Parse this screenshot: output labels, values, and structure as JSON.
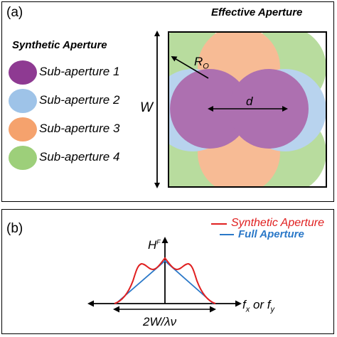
{
  "panel_a": {
    "label": "(a)",
    "effective_title": "Effective Aperture",
    "synthetic_title": "Synthetic Aperture",
    "legend": [
      {
        "label": "Sub-aperture 1",
        "color": "#8e3a92"
      },
      {
        "label": "Sub-aperture 2",
        "color": "#9ec3e8"
      },
      {
        "label": "Sub-aperture 3",
        "color": "#f5a26d"
      },
      {
        "label": "Sub-aperture 4",
        "color": "#9dcf7a"
      }
    ],
    "w_label": "W",
    "r_label": "R",
    "r_sub": "O",
    "d_label": "d"
  },
  "panel_b": {
    "label": "(b)",
    "legend": [
      {
        "label": "Synthetic Aperture",
        "color": "#e02020"
      },
      {
        "label": "Full Aperture",
        "color": "#2a78c8"
      }
    ],
    "y_label": "H",
    "y_sup": "F",
    "x_label_main": "f",
    "x_sub1": "x",
    "x_mid": " or f",
    "x_sub2": "y",
    "width_label": "2W/λν"
  }
}
